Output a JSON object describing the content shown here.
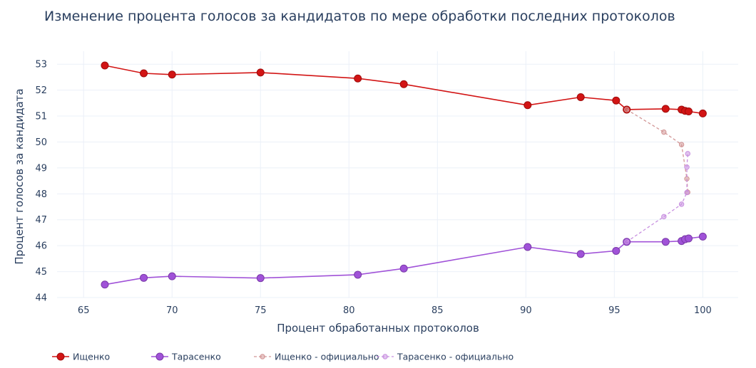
{
  "chart_data": {
    "type": "line",
    "title": "Изменение процента голосов за кандидатов по мере обработки последних протоколов",
    "xlabel": "Процент обработанных протоколов",
    "ylabel": "Процент голосов за кандидата",
    "xlim": [
      63.5,
      102
    ],
    "ylim": [
      44,
      53.5
    ],
    "xticks": [
      65,
      70,
      75,
      80,
      85,
      90,
      95,
      100
    ],
    "yticks": [
      44,
      45,
      46,
      47,
      48,
      49,
      50,
      51,
      52,
      53
    ],
    "grid": true,
    "legend_position": "bottom",
    "series": [
      {
        "name": "Ищенко",
        "style": "solid-marker",
        "color": "#d21414",
        "x": [
          66.2,
          68.4,
          70,
          75,
          80.5,
          83.1,
          90.1,
          93.1,
          95.1,
          95.7,
          97.9,
          98.8,
          99.0,
          99.2,
          100
        ],
        "y": [
          52.95,
          52.65,
          52.6,
          52.68,
          52.45,
          52.23,
          51.42,
          51.73,
          51.6,
          51.25,
          51.28,
          51.25,
          51.2,
          51.18,
          51.1
        ]
      },
      {
        "name": "Тарасенко",
        "style": "solid-marker",
        "color": "#a052d8",
        "x": [
          66.2,
          68.4,
          70,
          75,
          80.5,
          83.1,
          90.1,
          93.1,
          95.1,
          95.7,
          97.9,
          98.8,
          99.0,
          99.2,
          100
        ],
        "y": [
          44.5,
          44.76,
          44.82,
          44.75,
          44.88,
          45.12,
          45.95,
          45.68,
          45.8,
          46.15,
          46.15,
          46.18,
          46.25,
          46.28,
          46.35
        ]
      },
      {
        "name": "Ищенко - официально",
        "style": "dashed-small",
        "color": "#d29696",
        "x": [
          95.7,
          97.8,
          98.8,
          99.1,
          99.15
        ],
        "y": [
          51.25,
          50.38,
          49.9,
          48.58,
          48.06
        ]
      },
      {
        "name": "Тарасенко - официально",
        "style": "dashed-small",
        "color": "#c890e0",
        "x": [
          95.7,
          97.8,
          98.8,
          99.1,
          99.1,
          99.15
        ],
        "y": [
          46.15,
          47.12,
          47.6,
          48.05,
          49.03,
          49.55
        ]
      }
    ]
  }
}
